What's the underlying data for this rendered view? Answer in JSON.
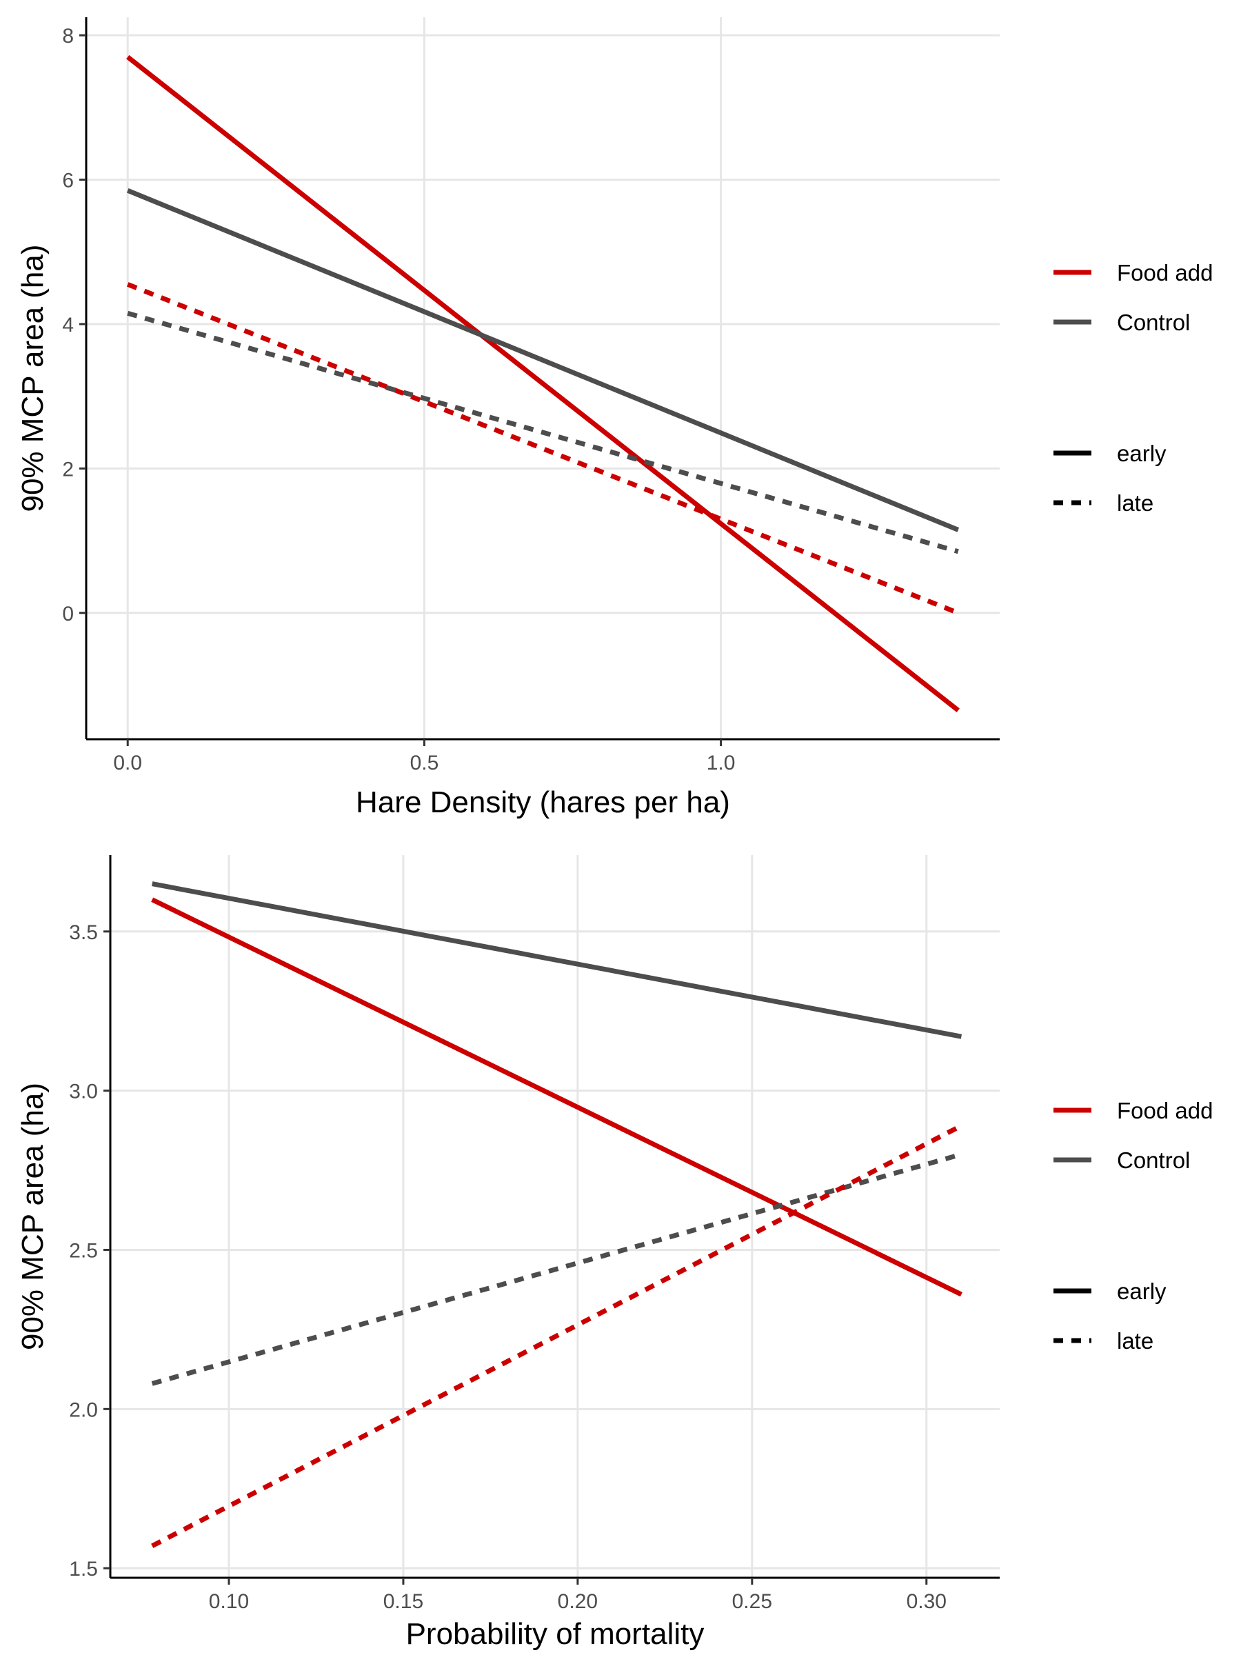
{
  "colors": {
    "food_add": "#cc0000",
    "control": "#4d4d4d",
    "grid": "#e6e6e6",
    "axis": "#000000"
  },
  "chart_data": [
    {
      "type": "line",
      "xlabel": "Hare Density (hares per ha)",
      "ylabel": "90% MCP area (ha)",
      "xlim": [
        -0.07,
        1.47
      ],
      "ylim": [
        -1.75,
        8.25
      ],
      "x_ticks": [
        0.0,
        0.5,
        1.0
      ],
      "x_tick_labels": [
        "0.0",
        "0.5",
        "1.0"
      ],
      "y_ticks": [
        0,
        2,
        4,
        6,
        8
      ],
      "y_tick_labels": [
        "0",
        "2",
        "4",
        "6",
        "8"
      ],
      "grid": true,
      "legend_position": "right",
      "legend_color": [
        {
          "label": "Food add",
          "color": "#cc0000"
        },
        {
          "label": "Control",
          "color": "#4d4d4d"
        }
      ],
      "legend_linetype": [
        {
          "label": "early",
          "dash": "solid"
        },
        {
          "label": "late",
          "dash": "dashed"
        }
      ],
      "series": [
        {
          "group": "Food add",
          "linetype": "early",
          "color": "#cc0000",
          "dashed": false,
          "x": [
            0.0,
            1.4
          ],
          "y": [
            7.7,
            -1.35
          ]
        },
        {
          "group": "Control",
          "linetype": "early",
          "color": "#4d4d4d",
          "dashed": false,
          "x": [
            0.0,
            1.4
          ],
          "y": [
            5.85,
            1.15
          ]
        },
        {
          "group": "Food add",
          "linetype": "late",
          "color": "#cc0000",
          "dashed": true,
          "x": [
            0.0,
            1.4
          ],
          "y": [
            4.55,
            0.0
          ]
        },
        {
          "group": "Control",
          "linetype": "late",
          "color": "#4d4d4d",
          "dashed": true,
          "x": [
            0.0,
            1.4
          ],
          "y": [
            4.15,
            0.85
          ]
        }
      ]
    },
    {
      "type": "line",
      "xlabel": "Probability of mortality",
      "ylabel": "90% MCP area (ha)",
      "xlim": [
        0.066,
        0.321
      ],
      "ylim": [
        1.47,
        3.74
      ],
      "x_ticks": [
        0.1,
        0.15,
        0.2,
        0.25,
        0.3
      ],
      "x_tick_labels": [
        "0.10",
        "0.15",
        "0.20",
        "0.25",
        "0.30"
      ],
      "y_ticks": [
        1.5,
        2.0,
        2.5,
        3.0,
        3.5
      ],
      "y_tick_labels": [
        "1.5",
        "2.0",
        "2.5",
        "3.0",
        "3.5"
      ],
      "grid": true,
      "legend_position": "right",
      "legend_color": [
        {
          "label": "Food add",
          "color": "#cc0000"
        },
        {
          "label": "Control",
          "color": "#4d4d4d"
        }
      ],
      "legend_linetype": [
        {
          "label": "early",
          "dash": "solid"
        },
        {
          "label": "late",
          "dash": "dashed"
        }
      ],
      "series": [
        {
          "group": "Control",
          "linetype": "early",
          "color": "#4d4d4d",
          "dashed": false,
          "x": [
            0.078,
            0.31
          ],
          "y": [
            3.65,
            3.17
          ]
        },
        {
          "group": "Food add",
          "linetype": "early",
          "color": "#cc0000",
          "dashed": false,
          "x": [
            0.078,
            0.31
          ],
          "y": [
            3.6,
            2.36
          ]
        },
        {
          "group": "Control",
          "linetype": "late",
          "color": "#4d4d4d",
          "dashed": true,
          "x": [
            0.078,
            0.31
          ],
          "y": [
            2.08,
            2.8
          ]
        },
        {
          "group": "Food add",
          "linetype": "late",
          "color": "#cc0000",
          "dashed": true,
          "x": [
            0.078,
            0.31
          ],
          "y": [
            1.57,
            2.89
          ]
        }
      ]
    }
  ]
}
